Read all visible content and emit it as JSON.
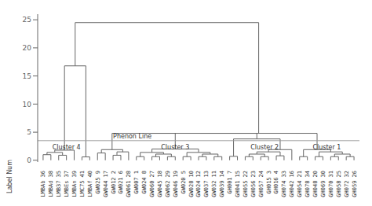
{
  "chart_data": {
    "type": "dendrogram",
    "xlabel": "Label Num",
    "ylim": [
      -0.3,
      26
    ],
    "yticks": [
      0,
      5,
      10,
      15,
      20,
      25
    ],
    "color": "#666666",
    "text_color": "#333333",
    "leaf_height": 0.25,
    "phenon_line": {
      "value": 3.5,
      "label": "Phenon Line",
      "color": "#999999",
      "anchor": "GW012 2"
    },
    "annotations": [
      {
        "text": "Cluster 4",
        "from": "LMBAb 36",
        "to": "LMBAf 40"
      },
      {
        "text": "Cluster 3",
        "from": "GW061 28",
        "to": "GW039 14"
      },
      {
        "text": "Cluster 2",
        "from": "GH041 15",
        "to": "GH042 16"
      },
      {
        "text": "Cluster 1",
        "from": "GH054 21",
        "to": "GH059 26"
      }
    ],
    "tree": {
      "height": 24.5,
      "children": [
        {
          "height": 16.8,
          "children": [
            {
              "height": 1.8,
              "children": [
                {
                  "height": 1.4,
                  "children": [
                    {
                      "height": 1.0,
                      "children": [
                        "LMBAb 36",
                        "LMBAd 38"
                      ]
                    },
                    {
                      "height": 0.9,
                      "children": [
                        "LMB37 35",
                        "LMBEs 37"
                      ]
                    }
                  ]
                },
                "LMBAn 39"
              ]
            },
            {
              "height": 0.6,
              "children": [
                "LMC75 41",
                "LMBAf 40"
              ]
            }
          ]
        },
        {
          "height": 4.8,
          "children": [
            {
              "height": 4.8,
              "children": [
                {
                  "height": 4.8,
                  "children": [
                    {
                      "height": 1.9,
                      "children": [
                        {
                          "height": 1.3,
                          "children": [
                            "GW025 9",
                            "GW044 17"
                          ]
                        },
                        {
                          "height": 1.5,
                          "children": [
                            {
                              "height": 0.9,
                              "children": [
                                "GW012 2",
                                "GW021 6"
                              ]
                            },
                            "GW061 28"
                          ]
                        }
                      ]
                    },
                    {
                      "height": 2.0,
                      "children": [
                        {
                          "height": 1.4,
                          "children": [
                            {
                              "height": 0.65,
                              "children": [
                                "GW007 1",
                                "GW024 8"
                              ]
                            },
                            {
                              "height": 1.1,
                              "children": [
                                {
                                  "height": 0.65,
                                  "children": [
                                    "GW060 27",
                                    "GW045 18"
                                  ]
                                },
                                {
                                  "height": 0.65,
                                  "children": [
                                    "GW062 29",
                                    "GW046 19"
                                  ]
                                }
                              ]
                            }
                          ]
                        },
                        {
                          "height": 1.4,
                          "children": [
                            {
                              "height": 0.65,
                              "children": [
                                "GW020 5",
                                "GW028 10"
                              ]
                            },
                            {
                              "height": 1.1,
                              "children": [
                                {
                                  "height": 0.65,
                                  "children": [
                                    "GW024 12",
                                    "GW037 13"
                                  ]
                                },
                                {
                                  "height": 0.65,
                                  "children": [
                                    "GW032 11",
                                    "GW039 14"
                                  ]
                                }
                              ]
                            }
                          ]
                        }
                      ]
                    }
                  ]
                },
                {
                  "height": 3.8,
                  "children": [
                    {
                      "height": 0.7,
                      "children": [
                        "GH001 7",
                        "GH041 15"
                      ]
                    },
                    {
                      "height": 1.9,
                      "children": [
                        {
                          "height": 1.5,
                          "children": [
                            {
                              "height": 1.1,
                              "children": [
                                {
                                  "height": 0.65,
                                  "children": [
                                    "GH055 22",
                                    "GH056 23"
                                  ]
                                },
                                {
                                  "height": 0.65,
                                  "children": [
                                    "GH057 24",
                                    "GH015 3"
                                  ]
                                }
                              ]
                            },
                            {
                              "height": 0.8,
                              "children": [
                                "GH016 4",
                                "GH074 33"
                              ]
                            }
                          ]
                        },
                        "GH042 16"
                      ]
                    }
                  ]
                }
              ]
            },
            {
              "height": 1.9,
              "children": [
                {
                  "height": 0.65,
                  "children": [
                    "GH054 21",
                    "GH078 34"
                  ]
                },
                {
                  "height": 1.5,
                  "children": [
                    {
                      "height": 0.65,
                      "children": [
                        "GH048 20",
                        "GH069 30"
                      ]
                    },
                    {
                      "height": 1.1,
                      "children": [
                        {
                          "height": 0.65,
                          "children": [
                            "GH070 31",
                            "GH058 25"
                          ]
                        },
                        {
                          "height": 0.65,
                          "children": [
                            "GH072 32",
                            "GH059 26"
                          ]
                        }
                      ]
                    }
                  ]
                }
              ]
            }
          ]
        }
      ]
    }
  }
}
